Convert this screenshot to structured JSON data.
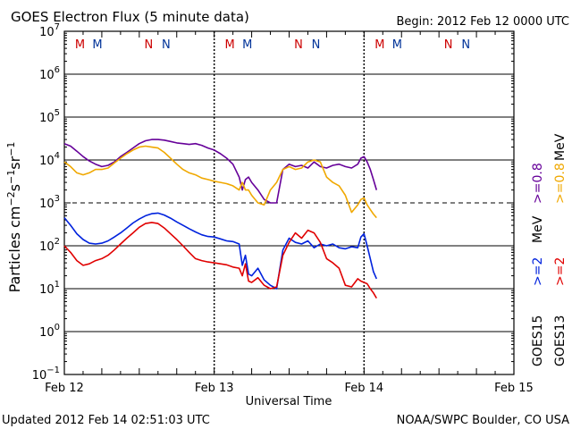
{
  "header": {
    "title": "GOES Electron Flux (5 minute data)",
    "begin": "Begin: 2012 Feb 12 0000 UTC"
  },
  "footer": {
    "updated": "Updated 2012 Feb 14 02:51:03 UTC",
    "credit": "NOAA/SWPC Boulder, CO USA"
  },
  "right_labels": {
    "goes15": "GOES15",
    "goes13": "GOES13",
    "ge2_a": ">=2",
    "ge2_b": ">=2",
    "mev_a": "MeV",
    "ge08_a": ">=0.8",
    "ge08_b": ">=0.8",
    "mev_b": "MeV"
  },
  "colors": {
    "goes15_high": "#660099",
    "goes13_high": "#f0a800",
    "goes15_low": "#0022dd",
    "goes13_low": "#e00000",
    "marker_M": "#cc0000",
    "marker_N": "#cc0000",
    "marker_blue": "#003399"
  },
  "chart_data": {
    "type": "line",
    "title": "GOES Electron Flux (5 minute data)",
    "xlabel": "Universal Time",
    "ylabel": "Particles cm-2s-1sr-1",
    "y_scale": "log",
    "ylim": [
      0.1,
      10000000
    ],
    "xlim": [
      0,
      72
    ],
    "x_unit": "hours since 2012 Feb 12 0000 UTC",
    "x_ticks": [
      {
        "x": 0,
        "label": "Feb 12"
      },
      {
        "x": 24,
        "label": "Feb 13"
      },
      {
        "x": 48,
        "label": "Feb 14"
      },
      {
        "x": 72,
        "label": "Feb 15"
      }
    ],
    "y_ticks": [
      {
        "v": 0.1,
        "base": "10",
        "exp": "−1"
      },
      {
        "v": 1,
        "base": "10",
        "exp": "0"
      },
      {
        "v": 10,
        "base": "10",
        "exp": "1"
      },
      {
        "v": 100,
        "base": "10",
        "exp": "2"
      },
      {
        "v": 1000,
        "base": "10",
        "exp": "3"
      },
      {
        "v": 10000,
        "base": "10",
        "exp": "4"
      },
      {
        "v": 100000,
        "base": "10",
        "exp": "5"
      },
      {
        "v": 1000000,
        "base": "10",
        "exp": "6"
      },
      {
        "v": 10000000,
        "base": "10",
        "exp": "7"
      }
    ],
    "threshold_line": 1000,
    "markers": [
      {
        "x": 2.5,
        "label": "M",
        "color": "#cc0000"
      },
      {
        "x": 5.3,
        "label": "M",
        "color": "#003399"
      },
      {
        "x": 13.5,
        "label": "N",
        "color": "#cc0000"
      },
      {
        "x": 16.3,
        "label": "N",
        "color": "#003399"
      },
      {
        "x": 26.5,
        "label": "M",
        "color": "#cc0000"
      },
      {
        "x": 29.3,
        "label": "M",
        "color": "#003399"
      },
      {
        "x": 37.5,
        "label": "N",
        "color": "#cc0000"
      },
      {
        "x": 40.3,
        "label": "N",
        "color": "#003399"
      },
      {
        "x": 50.5,
        "label": "M",
        "color": "#cc0000"
      },
      {
        "x": 53.3,
        "label": "M",
        "color": "#003399"
      },
      {
        "x": 61.5,
        "label": "N",
        "color": "#cc0000"
      },
      {
        "x": 64.3,
        "label": "N",
        "color": "#003399"
      }
    ],
    "series": [
      {
        "name": "GOES15 >=0.8 MeV",
        "color": "#660099",
        "x": [
          0,
          1,
          2,
          3,
          4,
          5,
          6,
          7,
          8,
          9,
          10,
          11,
          12,
          13,
          14,
          15,
          16,
          17,
          18,
          19,
          20,
          21,
          22,
          23,
          24,
          25,
          26,
          27,
          28,
          28.5,
          29,
          29.5,
          30,
          31,
          32,
          33,
          34,
          35,
          36,
          37,
          38,
          39,
          40,
          41,
          42,
          43,
          44,
          45,
          46,
          47,
          47.5,
          48,
          48.5,
          49,
          49.5,
          50
        ],
        "y": [
          24000,
          21000,
          16000,
          12000,
          9500,
          8000,
          7000,
          7500,
          9000,
          12000,
          15000,
          19000,
          24000,
          28000,
          30000,
          30000,
          29000,
          27000,
          25000,
          24000,
          23000,
          24000,
          22000,
          19000,
          17000,
          14000,
          11000,
          8000,
          4000,
          2000,
          3500,
          4000,
          3000,
          2000,
          1200,
          1000,
          1000,
          6000,
          8000,
          7000,
          7500,
          6500,
          9000,
          7000,
          6500,
          7500,
          8000,
          7000,
          6500,
          8000,
          11000,
          12000,
          9000,
          6000,
          3500,
          2000
        ]
      },
      {
        "name": "GOES13 >=0.8 MeV",
        "color": "#f0a800",
        "x": [
          0,
          1,
          2,
          3,
          4,
          5,
          6,
          7,
          8,
          9,
          10,
          11,
          12,
          13,
          14,
          15,
          16,
          17,
          18,
          19,
          20,
          21,
          22,
          23,
          24,
          25,
          26,
          27,
          28,
          28.5,
          29,
          29.5,
          30,
          31,
          32,
          33,
          34,
          35,
          36,
          37,
          38,
          39,
          40,
          41,
          42,
          43,
          44,
          45,
          46,
          47,
          47.5,
          48,
          48.5,
          49,
          49.5,
          50
        ],
        "y": [
          9000,
          7000,
          5000,
          4500,
          5000,
          6000,
          6000,
          6500,
          8500,
          11000,
          14000,
          17000,
          20000,
          21000,
          20000,
          19000,
          15000,
          11000,
          8000,
          6000,
          5000,
          4500,
          3800,
          3500,
          3200,
          3000,
          2800,
          2500,
          2000,
          3000,
          2000,
          2000,
          1500,
          1000,
          900,
          2000,
          3000,
          6000,
          7000,
          6000,
          6500,
          9000,
          10000,
          9000,
          4000,
          3000,
          2500,
          1500,
          600,
          900,
          1200,
          1300,
          900,
          700,
          550,
          450
        ]
      },
      {
        "name": "GOES15 >=2 MeV",
        "color": "#0022dd",
        "x": [
          0,
          1,
          2,
          3,
          4,
          5,
          6,
          7,
          8,
          9,
          10,
          11,
          12,
          13,
          14,
          15,
          16,
          17,
          18,
          19,
          20,
          21,
          22,
          23,
          24,
          25,
          26,
          27,
          28,
          28.5,
          29,
          29.5,
          30,
          31,
          32,
          33,
          34,
          35,
          36,
          37,
          38,
          39,
          40,
          41,
          42,
          43,
          44,
          45,
          46,
          47,
          47.5,
          48,
          48.5,
          49,
          49.5,
          50
        ],
        "y": [
          450,
          300,
          190,
          140,
          115,
          110,
          115,
          130,
          160,
          200,
          260,
          340,
          420,
          500,
          560,
          580,
          520,
          440,
          360,
          300,
          250,
          210,
          180,
          165,
          160,
          145,
          130,
          125,
          110,
          35,
          60,
          22,
          20,
          30,
          16,
          12,
          10,
          80,
          150,
          120,
          110,
          130,
          90,
          110,
          100,
          110,
          90,
          85,
          95,
          90,
          160,
          190,
          100,
          50,
          25,
          17
        ]
      },
      {
        "name": "GOES13 >=2 MeV",
        "color": "#e00000",
        "x": [
          0,
          1,
          2,
          3,
          4,
          5,
          6,
          7,
          8,
          9,
          10,
          11,
          12,
          13,
          14,
          15,
          16,
          17,
          18,
          19,
          20,
          21,
          22,
          23,
          24,
          25,
          26,
          27,
          28,
          28.5,
          29,
          29.5,
          30,
          31,
          32,
          33,
          34,
          35,
          36,
          37,
          38,
          39,
          40,
          41,
          42,
          43,
          44,
          45,
          46,
          47,
          47.5,
          48,
          48.5,
          49,
          49.5,
          50
        ],
        "y": [
          100,
          70,
          45,
          35,
          38,
          45,
          50,
          60,
          80,
          110,
          150,
          200,
          270,
          330,
          350,
          330,
          260,
          190,
          140,
          100,
          70,
          50,
          45,
          42,
          40,
          38,
          36,
          32,
          30,
          20,
          38,
          15,
          14,
          18,
          12,
          10,
          11,
          60,
          120,
          200,
          150,
          230,
          200,
          120,
          50,
          40,
          30,
          12,
          11,
          17,
          15,
          14,
          13,
          10,
          8,
          6
        ]
      }
    ]
  }
}
